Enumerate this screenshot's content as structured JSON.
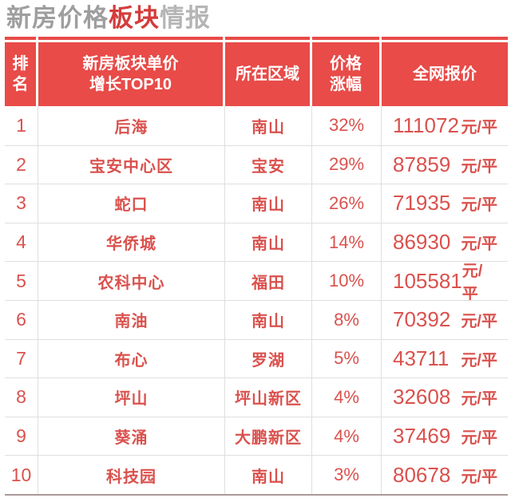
{
  "title": {
    "part1": "新房价格",
    "part2": "板块",
    "part3": "情报"
  },
  "table": {
    "header": {
      "rank_line1": "排",
      "rank_line2": "名",
      "block_line1": "新房板块单价",
      "block_line2": "增长TOP10",
      "region": "所在区域",
      "change_line1": "价格",
      "change_line2": "涨幅",
      "price": "全网报价"
    },
    "unit": "元/平",
    "rows": [
      {
        "rank": "1",
        "block": "后海",
        "region": "南山",
        "change": "32%",
        "price": "111072"
      },
      {
        "rank": "2",
        "block": "宝安中心区",
        "region": "宝安",
        "change": "29%",
        "price": "87859"
      },
      {
        "rank": "3",
        "block": "蛇口",
        "region": "南山",
        "change": "26%",
        "price": "71935"
      },
      {
        "rank": "4",
        "block": "华侨城",
        "region": "南山",
        "change": "14%",
        "price": "86930"
      },
      {
        "rank": "5",
        "block": "农科中心",
        "region": "福田",
        "change": "10%",
        "price": "105581"
      },
      {
        "rank": "6",
        "block": "南油",
        "region": "南山",
        "change": "8%",
        "price": "70392"
      },
      {
        "rank": "7",
        "block": "布心",
        "region": "罗湖",
        "change": "5%",
        "price": "43711"
      },
      {
        "rank": "8",
        "block": "坪山",
        "region": "坪山新区",
        "change": "4%",
        "price": "32608"
      },
      {
        "rank": "9",
        "block": "葵涌",
        "region": "大鹏新区",
        "change": "4%",
        "price": "37469"
      },
      {
        "rank": "10",
        "block": "科技园",
        "region": "南山",
        "change": "3%",
        "price": "80678"
      }
    ]
  },
  "colors": {
    "header_bg": "#e84b48",
    "title_accent_red": "#d43c3a",
    "body_text_red": "#da514d",
    "title_gray": "#9e9e9e",
    "title_light_gray": "#b5b5b5",
    "grid_line": "#dfdfdf",
    "bottom_border": "#ab9a9a"
  },
  "chart_data": {
    "type": "table",
    "title": "新房价格板块情报",
    "columns": [
      "排名",
      "新房板块单价增长TOP10",
      "所在区域",
      "价格涨幅",
      "全网报价"
    ],
    "rows": [
      [
        "1",
        "后海",
        "南山",
        "32%",
        "111072 元/平"
      ],
      [
        "2",
        "宝安中心区",
        "宝安",
        "29%",
        "87859 元/平"
      ],
      [
        "3",
        "蛇口",
        "南山",
        "26%",
        "71935 元/平"
      ],
      [
        "4",
        "华侨城",
        "南山",
        "14%",
        "86930 元/平"
      ],
      [
        "5",
        "农科中心",
        "福田",
        "10%",
        "105581 元/平"
      ],
      [
        "6",
        "南油",
        "南山",
        "8%",
        "70392 元/平"
      ],
      [
        "7",
        "布心",
        "罗湖",
        "5%",
        "43711 元/平"
      ],
      [
        "8",
        "坪山",
        "坪山新区",
        "4%",
        "32608 元/平"
      ],
      [
        "9",
        "葵涌",
        "大鹏新区",
        "4%",
        "37469 元/平"
      ],
      [
        "10",
        "科技园",
        "南山",
        "3%",
        "80678 元/平"
      ]
    ]
  }
}
